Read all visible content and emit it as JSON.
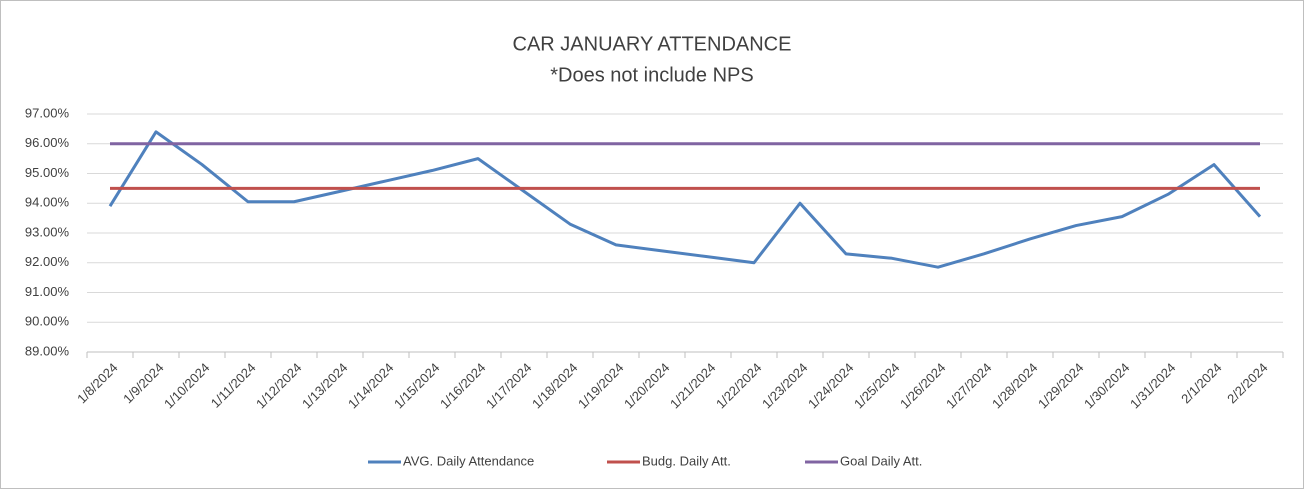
{
  "chart_data": {
    "type": "line",
    "title": "CAR JANUARY ATTENDANCE",
    "subtitle": "*Does not include NPS",
    "categories": [
      "1/8/2024",
      "1/9/2024",
      "1/10/2024",
      "1/11/2024",
      "1/12/2024",
      "1/13/2024",
      "1/14/2024",
      "1/15/2024",
      "1/16/2024",
      "1/17/2024",
      "1/18/2024",
      "1/19/2024",
      "1/20/2024",
      "1/21/2024",
      "1/22/2024",
      "1/23/2024",
      "1/24/2024",
      "1/25/2024",
      "1/26/2024",
      "1/27/2024",
      "1/28/2024",
      "1/29/2024",
      "1/30/2024",
      "1/31/2024",
      "2/1/2024",
      "2/2/2024"
    ],
    "series": [
      {
        "name": "AVG. Daily Attendance",
        "color": "#4f81bd",
        "values": [
          93.9,
          96.4,
          95.3,
          94.05,
          94.05,
          94.4,
          94.75,
          95.1,
          95.5,
          94.4,
          93.3,
          92.6,
          92.4,
          92.2,
          92.0,
          94.0,
          92.3,
          92.15,
          91.85,
          92.3,
          92.8,
          93.25,
          93.55,
          94.3,
          95.3,
          93.55
        ]
      },
      {
        "name": "Budg. Daily Att.",
        "color": "#c0504d",
        "values": [
          94.5,
          94.5,
          94.5,
          94.5,
          94.5,
          94.5,
          94.5,
          94.5,
          94.5,
          94.5,
          94.5,
          94.5,
          94.5,
          94.5,
          94.5,
          94.5,
          94.5,
          94.5,
          94.5,
          94.5,
          94.5,
          94.5,
          94.5,
          94.5,
          94.5,
          94.5
        ]
      },
      {
        "name": "Goal Daily Att.",
        "color": "#8064a2",
        "values": [
          96,
          96,
          96,
          96,
          96,
          96,
          96,
          96,
          96,
          96,
          96,
          96,
          96,
          96,
          96,
          96,
          96,
          96,
          96,
          96,
          96,
          96,
          96,
          96,
          96,
          96
        ]
      }
    ],
    "ylim": [
      89,
      97
    ],
    "yticks": [
      {
        "value": 89,
        "label": "89.00%"
      },
      {
        "value": 90,
        "label": "90.00%"
      },
      {
        "value": 91,
        "label": "91.00%"
      },
      {
        "value": 92,
        "label": "92.00%"
      },
      {
        "value": 93,
        "label": "93.00%"
      },
      {
        "value": 94,
        "label": "94.00%"
      },
      {
        "value": 95,
        "label": "95.00%"
      },
      {
        "value": 96,
        "label": "96.00%"
      },
      {
        "value": 97,
        "label": "97.00%"
      }
    ],
    "grid": true,
    "legend": "bottom"
  }
}
